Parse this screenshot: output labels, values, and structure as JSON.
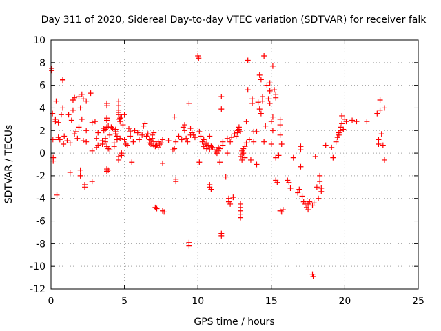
{
  "chart_data": {
    "type": "scatter",
    "title": "Day 311 of 2020, Sidereal Day-to-day VTEC variation (SDTVAR) for receiver falk",
    "xlabel": "GPS time / hours",
    "ylabel": "SDTVAR / TECUs",
    "xlim": [
      0,
      25
    ],
    "ylim": [
      -12,
      10
    ],
    "xticks": [
      "0",
      "5",
      "10",
      "15",
      "20",
      "25"
    ],
    "yticks": [
      "-12",
      "-10",
      "-8",
      "-6",
      "-4",
      "-2",
      "0",
      "2",
      "4",
      "6",
      "8",
      "10"
    ],
    "grid": true,
    "marker": "plus",
    "color": "#ff0000",
    "series": [
      {
        "name": "SDTVAR",
        "points": [
          [
            0.05,
            7.5
          ],
          [
            0.05,
            7.3
          ],
          [
            0.1,
            3.5
          ],
          [
            0.1,
            1.2
          ],
          [
            0.15,
            -0.4
          ],
          [
            0.15,
            -0.7
          ],
          [
            0.2,
            1.2
          ],
          [
            0.3,
            2.8
          ],
          [
            0.3,
            3.0
          ],
          [
            0.35,
            4.6
          ],
          [
            0.4,
            -3.7
          ],
          [
            0.5,
            1.4
          ],
          [
            0.5,
            2.7
          ],
          [
            0.6,
            1.2
          ],
          [
            0.7,
            3.4
          ],
          [
            0.8,
            6.5
          ],
          [
            0.8,
            6.4
          ],
          [
            0.8,
            4.0
          ],
          [
            0.85,
            0.8
          ],
          [
            0.9,
            1.5
          ],
          [
            1.1,
            1.1
          ],
          [
            1.2,
            3.4
          ],
          [
            1.3,
            0.9
          ],
          [
            1.3,
            -1.7
          ],
          [
            1.4,
            2.9
          ],
          [
            1.5,
            3.8
          ],
          [
            1.5,
            4.7
          ],
          [
            1.6,
            4.9
          ],
          [
            1.6,
            1.7
          ],
          [
            1.7,
            1.9
          ],
          [
            1.8,
            1.3
          ],
          [
            1.9,
            5.0
          ],
          [
            1.9,
            2.3
          ],
          [
            2.0,
            -1.5
          ],
          [
            2.0,
            -2.0
          ],
          [
            2.0,
            4.0
          ],
          [
            2.1,
            5.2
          ],
          [
            2.1,
            3.0
          ],
          [
            2.2,
            1.1
          ],
          [
            2.2,
            4.8
          ],
          [
            2.3,
            -2.8
          ],
          [
            2.3,
            -3.0
          ],
          [
            2.4,
            2.0
          ],
          [
            2.4,
            4.6
          ],
          [
            2.4,
            1.0
          ],
          [
            2.7,
            5.3
          ],
          [
            2.8,
            0.2
          ],
          [
            2.8,
            -2.5
          ],
          [
            2.8,
            2.7
          ],
          [
            3.0,
            2.8
          ],
          [
            3.1,
            1.3
          ],
          [
            3.1,
            0.5
          ],
          [
            3.2,
            0.7
          ],
          [
            3.2,
            1.8
          ],
          [
            3.5,
            1.1
          ],
          [
            3.5,
            0.8
          ],
          [
            3.6,
            2.2
          ],
          [
            3.6,
            2.0
          ],
          [
            3.7,
            2.1
          ],
          [
            3.7,
            1.0
          ],
          [
            3.7,
            1.3
          ],
          [
            3.8,
            4.4
          ],
          [
            3.8,
            4.2
          ],
          [
            3.8,
            3.1
          ],
          [
            3.8,
            2.9
          ],
          [
            3.8,
            2.3
          ],
          [
            3.8,
            0.6
          ],
          [
            3.8,
            -1.4
          ],
          [
            3.8,
            -1.6
          ],
          [
            3.9,
            -1.5
          ],
          [
            3.9,
            0.4
          ],
          [
            3.9,
            2.4
          ],
          [
            4.0,
            1.6
          ],
          [
            4.0,
            0.3
          ],
          [
            4.1,
            2.3
          ],
          [
            4.2,
            2.2
          ],
          [
            4.3,
            0.9
          ],
          [
            4.3,
            0.6
          ],
          [
            4.4,
            1.7
          ],
          [
            4.4,
            1.9
          ],
          [
            4.4,
            2.1
          ],
          [
            4.5,
            1.5
          ],
          [
            4.5,
            1.2
          ],
          [
            4.6,
            4.6
          ],
          [
            4.6,
            4.2
          ],
          [
            4.6,
            3.8
          ],
          [
            4.6,
            3.6
          ],
          [
            4.6,
            3.4
          ],
          [
            4.6,
            -0.3
          ],
          [
            4.6,
            -0.6
          ],
          [
            4.65,
            3.0
          ],
          [
            4.7,
            2.8
          ],
          [
            4.7,
            3.1
          ],
          [
            4.7,
            1.3
          ],
          [
            4.8,
            3.2
          ],
          [
            4.8,
            0.0
          ],
          [
            4.8,
            -0.2
          ],
          [
            4.9,
            2.5
          ],
          [
            5.0,
            3.4
          ],
          [
            5.0,
            1.2
          ],
          [
            5.1,
            0.8
          ],
          [
            5.2,
            0.7
          ],
          [
            5.3,
            2.2
          ],
          [
            5.4,
            1.9
          ],
          [
            5.4,
            1.5
          ],
          [
            5.5,
            -0.8
          ],
          [
            5.6,
            1.0
          ],
          [
            5.7,
            2.0
          ],
          [
            5.9,
            1.8
          ],
          [
            6.0,
            1.2
          ],
          [
            6.2,
            1.6
          ],
          [
            6.3,
            2.4
          ],
          [
            6.4,
            2.6
          ],
          [
            6.5,
            1.5
          ],
          [
            6.6,
            1.7
          ],
          [
            6.7,
            1.2
          ],
          [
            6.7,
            0.9
          ],
          [
            6.8,
            1.1
          ],
          [
            6.8,
            0.8
          ],
          [
            6.9,
            1.6
          ],
          [
            6.9,
            1.3
          ],
          [
            7.0,
            1.8
          ],
          [
            7.0,
            1.0
          ],
          [
            7.0,
            0.7
          ],
          [
            7.1,
            0.6
          ],
          [
            7.1,
            -4.8
          ],
          [
            7.2,
            -4.9
          ],
          [
            7.2,
            0.7
          ],
          [
            7.3,
            1.0
          ],
          [
            7.3,
            0.5
          ],
          [
            7.4,
            0.8
          ],
          [
            7.5,
            0.9
          ],
          [
            7.6,
            1.2
          ],
          [
            7.6,
            -0.9
          ],
          [
            7.6,
            -5.1
          ],
          [
            7.7,
            -5.2
          ],
          [
            8.0,
            1.1
          ],
          [
            8.3,
            0.3
          ],
          [
            8.4,
            0.4
          ],
          [
            8.4,
            3.2
          ],
          [
            8.5,
            -2.3
          ],
          [
            8.5,
            -2.5
          ],
          [
            8.5,
            1.0
          ],
          [
            8.7,
            1.5
          ],
          [
            8.9,
            1.2
          ],
          [
            9.0,
            2.3
          ],
          [
            9.1,
            2.0
          ],
          [
            9.1,
            2.5
          ],
          [
            9.2,
            1.3
          ],
          [
            9.3,
            1.0
          ],
          [
            9.4,
            4.4
          ],
          [
            9.4,
            -7.9
          ],
          [
            9.4,
            -8.2
          ],
          [
            9.5,
            1.6
          ],
          [
            9.5,
            2.2
          ],
          [
            9.6,
            1.8
          ],
          [
            9.7,
            1.6
          ],
          [
            9.8,
            1.4
          ],
          [
            10.0,
            8.6
          ],
          [
            10.05,
            8.4
          ],
          [
            10.1,
            -0.8
          ],
          [
            10.1,
            1.9
          ],
          [
            10.2,
            1.5
          ],
          [
            10.3,
            1.0
          ],
          [
            10.4,
            0.6
          ],
          [
            10.4,
            1.2
          ],
          [
            10.5,
            0.8
          ],
          [
            10.6,
            0.4
          ],
          [
            10.6,
            0.9
          ],
          [
            10.7,
            0.7
          ],
          [
            10.8,
            1.5
          ],
          [
            10.8,
            0.3
          ],
          [
            10.8,
            -2.8
          ],
          [
            10.8,
            -3.0
          ],
          [
            10.9,
            -3.2
          ],
          [
            10.9,
            0.6
          ],
          [
            11.0,
            0.5
          ],
          [
            11.1,
            0.3
          ],
          [
            11.2,
            0.1
          ],
          [
            11.3,
            0.0
          ],
          [
            11.3,
            0.3
          ],
          [
            11.4,
            0.2
          ],
          [
            11.4,
            0.5
          ],
          [
            11.5,
            0.4
          ],
          [
            11.5,
            -0.8
          ],
          [
            11.6,
            -7.1
          ],
          [
            11.6,
            -7.3
          ],
          [
            11.6,
            5.0
          ],
          [
            11.6,
            3.9
          ],
          [
            11.7,
            1.0
          ],
          [
            11.7,
            0.7
          ],
          [
            11.9,
            -2.1
          ],
          [
            12.0,
            1.3
          ],
          [
            12.0,
            0.0
          ],
          [
            12.1,
            -4.0
          ],
          [
            12.1,
            -4.3
          ],
          [
            12.2,
            -4.5
          ],
          [
            12.2,
            1.0
          ],
          [
            12.3,
            1.4
          ],
          [
            12.4,
            -3.9
          ],
          [
            12.5,
            1.7
          ],
          [
            12.6,
            1.5
          ],
          [
            12.7,
            1.8
          ],
          [
            12.7,
            2.0
          ],
          [
            12.8,
            2.1
          ],
          [
            12.8,
            2.3
          ],
          [
            12.9,
            1.9
          ],
          [
            12.9,
            -4.5
          ],
          [
            12.9,
            -4.8
          ],
          [
            12.9,
            -5.1
          ],
          [
            12.9,
            -5.4
          ],
          [
            12.9,
            -5.7
          ],
          [
            12.9,
            -0.3
          ],
          [
            13.0,
            -0.1
          ],
          [
            13.0,
            0.2
          ],
          [
            13.0,
            -0.6
          ],
          [
            13.1,
            0.4
          ],
          [
            13.1,
            0.0
          ],
          [
            13.2,
            0.6
          ],
          [
            13.2,
            -0.4
          ],
          [
            13.3,
            0.9
          ],
          [
            13.3,
            2.8
          ],
          [
            13.4,
            8.2
          ],
          [
            13.4,
            5.6
          ],
          [
            13.5,
            1.2
          ],
          [
            13.6,
            -0.6
          ],
          [
            13.7,
            4.8
          ],
          [
            13.7,
            4.4
          ],
          [
            13.8,
            1.0
          ],
          [
            13.8,
            1.9
          ],
          [
            14.0,
            1.9
          ],
          [
            14.0,
            -1.0
          ],
          [
            14.1,
            4.5
          ],
          [
            14.2,
            3.9
          ],
          [
            14.2,
            6.9
          ],
          [
            14.3,
            3.5
          ],
          [
            14.3,
            6.5
          ],
          [
            14.4,
            5.0
          ],
          [
            14.4,
            4.6
          ],
          [
            14.5,
            8.6
          ],
          [
            14.5,
            1.0
          ],
          [
            14.6,
            2.4
          ],
          [
            14.7,
            6.0
          ],
          [
            14.8,
            4.8
          ],
          [
            14.9,
            4.4
          ],
          [
            14.9,
            5.5
          ],
          [
            14.9,
            6.2
          ],
          [
            15.0,
            0.8
          ],
          [
            15.0,
            2.8
          ],
          [
            15.1,
            7.7
          ],
          [
            15.1,
            3.2
          ],
          [
            15.1,
            2.0
          ],
          [
            15.2,
            5.6
          ],
          [
            15.3,
            5.2
          ],
          [
            15.3,
            4.9
          ],
          [
            15.3,
            -0.4
          ],
          [
            15.3,
            -2.4
          ],
          [
            15.4,
            -2.6
          ],
          [
            15.5,
            -0.2
          ],
          [
            15.6,
            3.0
          ],
          [
            15.6,
            2.5
          ],
          [
            15.6,
            1.6
          ],
          [
            15.6,
            -5.1
          ],
          [
            15.7,
            -5.2
          ],
          [
            15.7,
            0.8
          ],
          [
            15.8,
            -5.0
          ],
          [
            16.1,
            -2.4
          ],
          [
            16.2,
            -2.6
          ],
          [
            16.3,
            -3.1
          ],
          [
            16.5,
            -0.4
          ],
          [
            16.8,
            -3.5
          ],
          [
            16.9,
            -3.2
          ],
          [
            17.0,
            0.6
          ],
          [
            17.0,
            0.3
          ],
          [
            17.0,
            -1.2
          ],
          [
            17.1,
            -3.8
          ],
          [
            17.2,
            -4.3
          ],
          [
            17.3,
            -4.5
          ],
          [
            17.4,
            -4.8
          ],
          [
            17.5,
            -5.0
          ],
          [
            17.5,
            -4.5
          ],
          [
            17.6,
            -4.3
          ],
          [
            17.8,
            -4.6
          ],
          [
            17.8,
            -10.7
          ],
          [
            17.85,
            -10.9
          ],
          [
            17.9,
            -4.4
          ],
          [
            18.0,
            -0.3
          ],
          [
            18.1,
            -3.0
          ],
          [
            18.2,
            -4.0
          ],
          [
            18.3,
            -2.0
          ],
          [
            18.3,
            -2.5
          ],
          [
            18.4,
            -3.1
          ],
          [
            18.4,
            -3.4
          ],
          [
            18.7,
            0.7
          ],
          [
            19.1,
            0.5
          ],
          [
            19.2,
            -0.4
          ],
          [
            19.4,
            1.0
          ],
          [
            19.5,
            1.4
          ],
          [
            19.6,
            1.6
          ],
          [
            19.6,
            1.8
          ],
          [
            19.7,
            2.0
          ],
          [
            19.7,
            2.3
          ],
          [
            19.8,
            2.6
          ],
          [
            19.8,
            3.3
          ],
          [
            19.9,
            2.1
          ],
          [
            20.0,
            3.0
          ],
          [
            20.1,
            2.8
          ],
          [
            20.5,
            2.9
          ],
          [
            20.8,
            2.8
          ],
          [
            21.5,
            2.8
          ],
          [
            22.2,
            3.5
          ],
          [
            22.3,
            1.2
          ],
          [
            22.3,
            0.8
          ],
          [
            22.4,
            4.7
          ],
          [
            22.4,
            3.8
          ],
          [
            22.5,
            1.7
          ],
          [
            22.6,
            0.7
          ],
          [
            22.7,
            4.0
          ],
          [
            22.7,
            -0.6
          ]
        ]
      }
    ]
  }
}
